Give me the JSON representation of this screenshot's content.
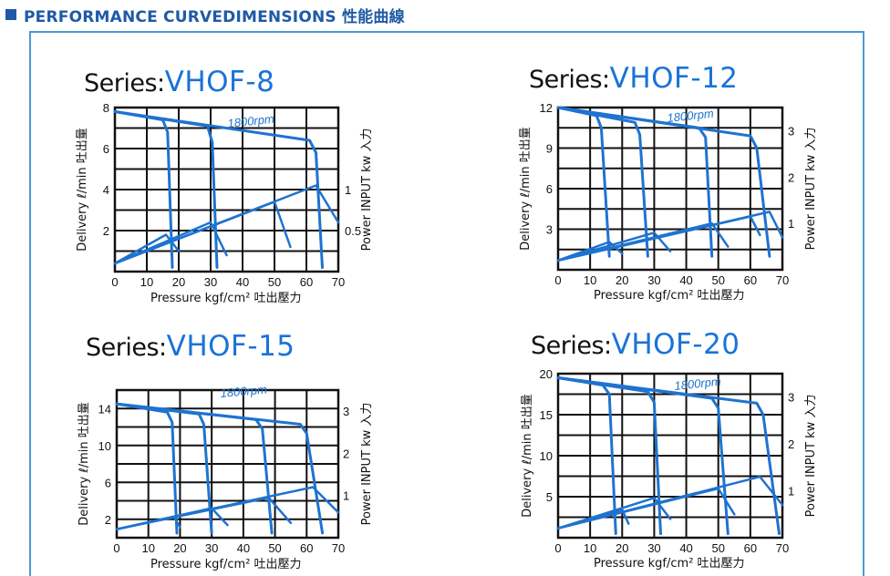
{
  "header": {
    "title": "PERFORMANCE CURVEDIMENSIONS 性能曲線"
  },
  "colors": {
    "accent": "#1e5aa6",
    "curve": "#1e73d0",
    "frame": "#4a9ad6",
    "grid": "#111111"
  },
  "chart_data": [
    {
      "type": "line",
      "title_prefix": "Series:",
      "title": "VHOF-8",
      "xlabel": "Pressure kgf/cm² 吐出壓力",
      "ylabel": "Delivery ℓ/min 吐出量",
      "y2label": "Power INPUT kw 入力",
      "annotation": "1800rpm",
      "xlim": [
        0,
        70
      ],
      "ylim": [
        0,
        8
      ],
      "xticks": [
        "0",
        "10",
        "20",
        "30",
        "40",
        "50",
        "60",
        "70"
      ],
      "yticks": [
        "2",
        "4",
        "6",
        "8"
      ],
      "y2lim": [
        0,
        2
      ],
      "y2ticks": [
        "0.5",
        "1"
      ],
      "delivery_curves": [
        [
          [
            0,
            7.8
          ],
          [
            15,
            7.4
          ],
          [
            16.5,
            6.8
          ],
          [
            18,
            0.2
          ]
        ],
        [
          [
            0,
            7.8
          ],
          [
            29,
            7.1
          ],
          [
            30.5,
            6.3
          ],
          [
            32,
            0.2
          ]
        ],
        [
          [
            0,
            7.8
          ],
          [
            61,
            6.4
          ],
          [
            63,
            5.8
          ],
          [
            65,
            0.2
          ]
        ]
      ],
      "power_curves": [
        [
          [
            0,
            0.1
          ],
          [
            16,
            0.45
          ],
          [
            20,
            0.25
          ]
        ],
        [
          [
            0,
            0.1
          ],
          [
            30,
            0.6
          ],
          [
            35,
            0.2
          ]
        ],
        [
          [
            0,
            0.1
          ],
          [
            50,
            0.85
          ],
          [
            55,
            0.3
          ]
        ],
        [
          [
            0,
            0.1
          ],
          [
            63,
            1.05
          ],
          [
            70,
            0.6
          ]
        ]
      ]
    },
    {
      "type": "line",
      "title_prefix": "Series:",
      "title": "VHOF-12",
      "xlabel": "Pressure kgf/cm² 吐出壓力",
      "ylabel": "Delivery ℓ/min 吐出量",
      "y2label": "Power INPUT kw 入力",
      "annotation": "1800rpm",
      "xlim": [
        0,
        70
      ],
      "ylim": [
        0,
        12
      ],
      "xticks": [
        "0",
        "10",
        "20",
        "30",
        "40",
        "50",
        "60",
        "70"
      ],
      "yticks": [
        "3",
        "6",
        "9",
        "12"
      ],
      "y2lim": [
        0,
        3.5
      ],
      "y2ticks": [
        "1",
        "2",
        "3"
      ],
      "delivery_curves": [
        [
          [
            0,
            12
          ],
          [
            12,
            11.4
          ],
          [
            13.5,
            10.5
          ],
          [
            16,
            1
          ]
        ],
        [
          [
            0,
            12
          ],
          [
            24,
            10.9
          ],
          [
            25.5,
            10
          ],
          [
            28,
            1
          ]
        ],
        [
          [
            0,
            12
          ],
          [
            44,
            10.5
          ],
          [
            46,
            9.8
          ],
          [
            48,
            1
          ]
        ],
        [
          [
            0,
            12
          ],
          [
            60,
            9.9
          ],
          [
            62,
            9
          ],
          [
            66,
            1
          ]
        ]
      ],
      "power_curves": [
        [
          [
            0,
            0.2
          ],
          [
            16,
            0.6
          ],
          [
            20,
            0.35
          ]
        ],
        [
          [
            0,
            0.2
          ],
          [
            30,
            0.8
          ],
          [
            35,
            0.4
          ]
        ],
        [
          [
            0,
            0.2
          ],
          [
            48,
            1.0
          ],
          [
            53,
            0.5
          ]
        ],
        [
          [
            0,
            0.2
          ],
          [
            60,
            1.15
          ],
          [
            63,
            0.75
          ]
        ],
        [
          [
            0,
            0.2
          ],
          [
            66,
            1.25
          ],
          [
            70,
            0.7
          ]
        ]
      ]
    },
    {
      "type": "line",
      "title_prefix": "Series:",
      "title": "VHOF-15",
      "xlabel": "Pressure kgf/cm² 吐出壓力",
      "ylabel": "Delivery ℓ/min 吐出量",
      "y2label": "Power INPUT kw 入力",
      "annotation": "1800rpm",
      "xlim": [
        0,
        70
      ],
      "ylim": [
        0,
        16
      ],
      "xticks": [
        "0",
        "10",
        "20",
        "30",
        "40",
        "50",
        "60",
        "70"
      ],
      "yticks": [
        "2",
        "6",
        "10",
        "14"
      ],
      "y2lim": [
        0,
        3.5
      ],
      "y2ticks": [
        "1",
        "2",
        "3"
      ],
      "delivery_curves": [
        [
          [
            0,
            14.5
          ],
          [
            16,
            13.6
          ],
          [
            17.5,
            12.5
          ],
          [
            19,
            0.5
          ]
        ],
        [
          [
            0,
            14.5
          ],
          [
            26,
            13.4
          ],
          [
            27.5,
            12.3
          ],
          [
            30,
            0.5
          ]
        ],
        [
          [
            0,
            14.5
          ],
          [
            44,
            12.8
          ],
          [
            46,
            11.8
          ],
          [
            49,
            0.5
          ]
        ],
        [
          [
            0,
            14.5
          ],
          [
            58,
            12.3
          ],
          [
            60,
            11.3
          ],
          [
            65,
            0.5
          ]
        ]
      ],
      "power_curves": [
        [
          [
            0,
            0.2
          ],
          [
            18,
            0.5
          ],
          [
            20,
            0.25
          ]
        ],
        [
          [
            0,
            0.2
          ],
          [
            30,
            0.7
          ],
          [
            35,
            0.3
          ]
        ],
        [
          [
            0,
            0.2
          ],
          [
            48,
            0.95
          ],
          [
            55,
            0.35
          ]
        ],
        [
          [
            0,
            0.2
          ],
          [
            62,
            1.2
          ],
          [
            70,
            0.6
          ]
        ]
      ]
    },
    {
      "type": "line",
      "title_prefix": "Series:",
      "title": "VHOF-20",
      "xlabel": "Pressure kgf/cm² 吐出壓力",
      "ylabel": "Delivery ℓ/min 吐出量",
      "y2label": "Power INPUT kw 入力",
      "annotation": "1800rpm",
      "xlim": [
        0,
        70
      ],
      "ylim": [
        0,
        20
      ],
      "xticks": [
        "0",
        "10",
        "20",
        "30",
        "40",
        "50",
        "60",
        "70"
      ],
      "yticks": [
        "5",
        "10",
        "15",
        "20"
      ],
      "y2lim": [
        0,
        3.5
      ],
      "y2ticks": [
        "1",
        "2",
        "3"
      ],
      "delivery_curves": [
        [
          [
            0,
            19.5
          ],
          [
            14,
            18.6
          ],
          [
            16,
            17.5
          ],
          [
            18,
            0.5
          ]
        ],
        [
          [
            0,
            19.5
          ],
          [
            28,
            17.8
          ],
          [
            30,
            16.5
          ],
          [
            32,
            0.5
          ]
        ],
        [
          [
            0,
            19.5
          ],
          [
            48,
            17
          ],
          [
            50,
            15.8
          ],
          [
            53,
            0.5
          ]
        ],
        [
          [
            0,
            19.5
          ],
          [
            62,
            16.4
          ],
          [
            64,
            15
          ],
          [
            69,
            0.5
          ]
        ]
      ],
      "power_curves": [
        [
          [
            0,
            0.2
          ],
          [
            20,
            0.6
          ],
          [
            22,
            0.3
          ]
        ],
        [
          [
            0,
            0.2
          ],
          [
            30,
            0.85
          ],
          [
            35,
            0.4
          ]
        ],
        [
          [
            0,
            0.2
          ],
          [
            50,
            1.05
          ],
          [
            55,
            0.5
          ]
        ],
        [
          [
            0,
            0.2
          ],
          [
            63,
            1.3
          ],
          [
            70,
            0.7
          ]
        ]
      ]
    }
  ]
}
